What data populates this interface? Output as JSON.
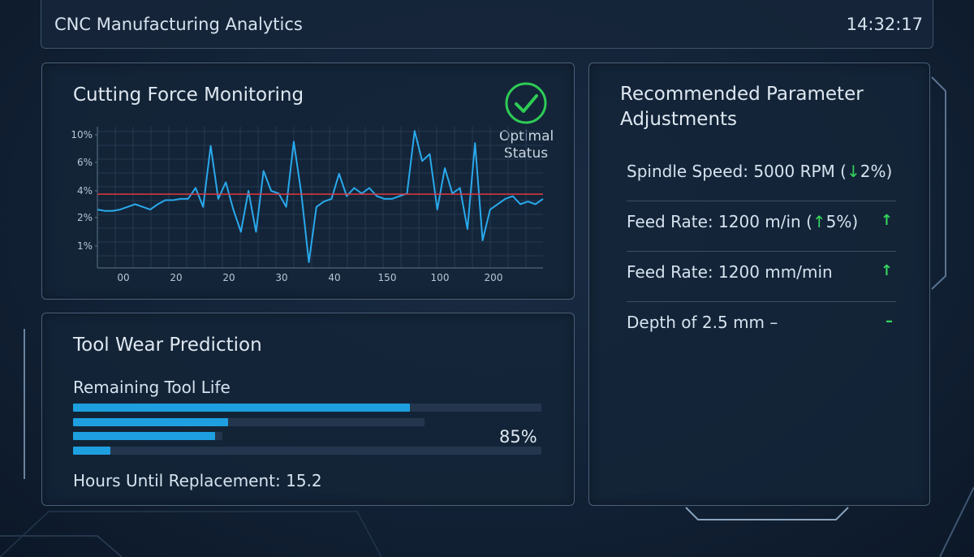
{
  "header": {
    "title": "CNC Manufacturing Analytics",
    "time": "14:32:17"
  },
  "cutting_force": {
    "title": "Cutting Force Monitoring",
    "status_label": "Optimal Status",
    "status_color": "#2ecc55",
    "status_icon": "check-circle-icon"
  },
  "chart_data": {
    "type": "line",
    "title": "",
    "xlabel": "",
    "ylabel": "",
    "x_tick_labels": [
      "00",
      "20",
      "20",
      "30",
      "40",
      "150",
      "100",
      "200"
    ],
    "y_tick_labels": [
      "10%",
      "6%",
      "4%",
      "2%",
      "1%"
    ],
    "ylim": [
      0,
      10
    ],
    "grid": true,
    "threshold": 3.75,
    "threshold_color": "#e0393e",
    "line_color": "#29a9ec",
    "series": [
      {
        "values": [
          2.6,
          2.5,
          2.5,
          2.6,
          2.8,
          3.0,
          2.8,
          2.6,
          3.0,
          3.3,
          3.3,
          3.4,
          3.4,
          4.2,
          2.8,
          8.4,
          3.4,
          4.6,
          2.6,
          1.5,
          4.0,
          1.5,
          5.4,
          4.0,
          3.8,
          2.8,
          9.0,
          3.8,
          0.2,
          2.8,
          3.2,
          3.4,
          5.2,
          3.6,
          4.2,
          3.8,
          4.2,
          3.6,
          3.4,
          3.4,
          3.6,
          3.8,
          10.6,
          6.2,
          7.2,
          2.6,
          5.6,
          3.8,
          4.2,
          1.6,
          8.8,
          1.2,
          2.6,
          3.0,
          3.4,
          3.6,
          3.0,
          3.2,
          3.0,
          3.4
        ]
      }
    ]
  },
  "tool_wear": {
    "title": "Tool Wear Prediction",
    "subtitle": "Remaining Tool Life",
    "percent_label": "85%",
    "bars": [
      {
        "fill": 0.72
      },
      {
        "fill": 0.44
      },
      {
        "fill": 0.95
      },
      {
        "fill": 0.08
      }
    ],
    "hours_label": "Hours Until Replacement: 15.2"
  },
  "recommendations": {
    "title_line1": "Recommended Parameter",
    "title_line2": "Adjustments",
    "items": [
      {
        "text_before": "Spindle Speed: 5000 RPM (",
        "arrow": "↓",
        "text_after": "2%)",
        "trend": ""
      },
      {
        "text_before": "Feed Rate: 1200 m/in (",
        "arrow": "↑",
        "text_after": "5%)",
        "trend": "↑"
      },
      {
        "text_before": "Feed Rate: 1200 mm/min",
        "arrow": "",
        "text_after": "",
        "trend": "↑"
      },
      {
        "text_before": "Depth of 2.5 mm  –",
        "arrow": "",
        "text_after": "",
        "trend": "–"
      }
    ]
  }
}
